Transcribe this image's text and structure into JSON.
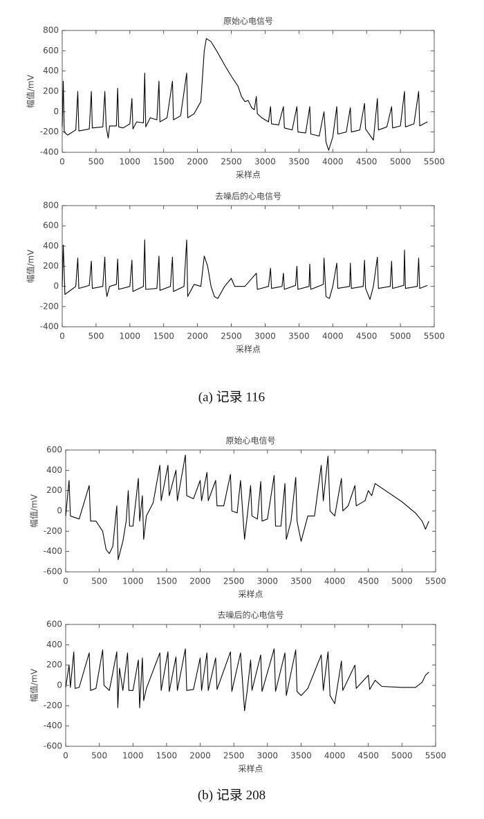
{
  "chart_data": [
    {
      "type": "line",
      "title": "原始心电信号",
      "xlabel": "采样点",
      "ylabel": "幅值/mV",
      "color": "#000000",
      "xlim": [
        0,
        5500
      ],
      "xticks": [
        0,
        500,
        1000,
        1500,
        2000,
        2500,
        3000,
        3500,
        4000,
        4500,
        5000,
        5500
      ],
      "ylim": [
        -400,
        800
      ],
      "yticks": [
        -400,
        -200,
        0,
        200,
        400,
        600,
        800
      ],
      "x": [
        0,
        15,
        30,
        80,
        200,
        230,
        245,
        400,
        430,
        445,
        600,
        630,
        650,
        680,
        700,
        800,
        820,
        835,
        900,
        1000,
        1030,
        1045,
        1100,
        1200,
        1220,
        1235,
        1300,
        1400,
        1430,
        1445,
        1550,
        1630,
        1645,
        1750,
        1840,
        1855,
        1950,
        2050,
        2100,
        2130,
        2200,
        2300,
        2400,
        2500,
        2600,
        2650,
        2700,
        2750,
        2800,
        2840,
        2870,
        2885,
        2950,
        3050,
        3080,
        3095,
        3200,
        3270,
        3285,
        3400,
        3470,
        3485,
        3600,
        3660,
        3675,
        3800,
        3870,
        3900,
        3940,
        4000,
        4060,
        4075,
        4200,
        4260,
        4275,
        4400,
        4470,
        4485,
        4600,
        4660,
        4675,
        4800,
        4870,
        4885,
        5000,
        5060,
        5075,
        5200,
        5270,
        5285,
        5400
      ],
      "values": [
        -150,
        300,
        -200,
        -230,
        -180,
        200,
        -190,
        -170,
        200,
        -160,
        -150,
        200,
        -150,
        -260,
        -140,
        -140,
        230,
        -150,
        -160,
        -120,
        130,
        -170,
        -100,
        -110,
        380,
        -150,
        -60,
        -80,
        300,
        -100,
        -60,
        300,
        -80,
        -40,
        380,
        -60,
        -20,
        100,
        600,
        720,
        690,
        580,
        460,
        350,
        250,
        150,
        100,
        110,
        40,
        20,
        150,
        -20,
        -60,
        -100,
        50,
        -120,
        -130,
        50,
        -160,
        -180,
        50,
        -200,
        -210,
        50,
        -220,
        -240,
        0,
        -300,
        -380,
        -250,
        50,
        -220,
        -200,
        40,
        -200,
        -180,
        80,
        -170,
        -280,
        130,
        -180,
        -150,
        50,
        -160,
        -140,
        200,
        -150,
        -120,
        200,
        -140,
        -100
      ]
    },
    {
      "type": "line",
      "title": "去噪后的心电信号",
      "xlabel": "采样点",
      "ylabel": "幅值/mV",
      "color": "#000000",
      "xlim": [
        0,
        5500
      ],
      "xticks": [
        0,
        500,
        1000,
        1500,
        2000,
        2500,
        3000,
        3500,
        4000,
        4500,
        5000,
        5500
      ],
      "ylim": [
        -400,
        800
      ],
      "yticks": [
        -400,
        -200,
        0,
        200,
        400,
        600,
        800
      ],
      "x": [
        0,
        15,
        40,
        100,
        200,
        230,
        245,
        400,
        430,
        445,
        600,
        630,
        645,
        660,
        700,
        800,
        820,
        835,
        1000,
        1030,
        1045,
        1200,
        1220,
        1235,
        1400,
        1430,
        1445,
        1600,
        1630,
        1645,
        1800,
        1840,
        1855,
        1950,
        2050,
        2100,
        2150,
        2200,
        2250,
        2300,
        2400,
        2500,
        2550,
        2700,
        2870,
        2885,
        3050,
        3080,
        3095,
        3250,
        3270,
        3285,
        3450,
        3470,
        3485,
        3650,
        3660,
        3675,
        3860,
        3870,
        3900,
        3950,
        4000,
        4060,
        4075,
        4250,
        4260,
        4275,
        4450,
        4470,
        4485,
        4550,
        4600,
        4660,
        4675,
        4850,
        4870,
        4885,
        5050,
        5060,
        5075,
        5250,
        5270,
        5285,
        5400
      ],
      "values": [
        0,
        410,
        -80,
        -50,
        0,
        280,
        -20,
        10,
        250,
        -20,
        0,
        290,
        -20,
        -100,
        0,
        20,
        270,
        -30,
        0,
        260,
        -50,
        0,
        460,
        -30,
        -20,
        300,
        -40,
        0,
        290,
        -50,
        0,
        460,
        -100,
        20,
        0,
        300,
        200,
        0,
        -100,
        -120,
        0,
        80,
        0,
        0,
        130,
        -30,
        0,
        180,
        -20,
        0,
        130,
        -30,
        10,
        200,
        -30,
        0,
        220,
        -30,
        20,
        280,
        -100,
        -120,
        0,
        230,
        -20,
        0,
        230,
        -20,
        0,
        260,
        -20,
        -130,
        0,
        290,
        -20,
        0,
        250,
        -20,
        10,
        360,
        -20,
        0,
        280,
        -20,
        10
      ]
    },
    {
      "type": "line",
      "title": "原始心电信号",
      "xlabel": "采样点",
      "ylabel": "幅值/mV",
      "color": "#000000",
      "xlim": [
        0,
        5500
      ],
      "xticks": [
        0,
        500,
        1000,
        1500,
        2000,
        2500,
        3000,
        3500,
        4000,
        4500,
        5000,
        5500
      ],
      "ylim": [
        -600,
        600
      ],
      "yticks": [
        -600,
        -400,
        -200,
        0,
        200,
        400,
        600
      ],
      "x": [
        0,
        50,
        70,
        200,
        350,
        370,
        450,
        550,
        600,
        650,
        700,
        760,
        780,
        850,
        900,
        930,
        950,
        1000,
        1080,
        1100,
        1140,
        1160,
        1200,
        1300,
        1400,
        1420,
        1520,
        1540,
        1640,
        1660,
        1780,
        1800,
        1900,
        2000,
        2020,
        2100,
        2120,
        2230,
        2250,
        2350,
        2450,
        2470,
        2550,
        2600,
        2660,
        2700,
        2750,
        2770,
        2850,
        2900,
        2920,
        3000,
        3100,
        3120,
        3200,
        3260,
        3280,
        3350,
        3420,
        3440,
        3500,
        3600,
        3700,
        3800,
        3830,
        3900,
        3930,
        4000,
        4100,
        4120,
        4200,
        4300,
        4320,
        4450,
        4500,
        4550,
        4600,
        4800,
        5000,
        5200,
        5300,
        5350,
        5400
      ],
      "values": [
        -50,
        300,
        -50,
        -80,
        250,
        -100,
        -100,
        -200,
        -380,
        -420,
        -350,
        50,
        -480,
        -300,
        -100,
        200,
        -150,
        -150,
        320,
        -100,
        150,
        -280,
        -50,
        80,
        450,
        100,
        450,
        150,
        400,
        100,
        550,
        150,
        120,
        300,
        100,
        380,
        100,
        300,
        50,
        50,
        360,
        0,
        -20,
        300,
        -280,
        -50,
        250,
        -50,
        -80,
        290,
        -100,
        -80,
        350,
        -150,
        -150,
        270,
        -280,
        -100,
        330,
        -100,
        -300,
        -50,
        -50,
        450,
        100,
        540,
        0,
        -50,
        320,
        0,
        50,
        250,
        50,
        100,
        200,
        150,
        270,
        180,
        90,
        -20,
        -100,
        -180,
        -100
      ]
    },
    {
      "type": "line",
      "title": "去噪后的心电信号",
      "xlabel": "采样点",
      "ylabel": "幅值/mV",
      "color": "#000000",
      "xlim": [
        0,
        5500
      ],
      "xticks": [
        0,
        500,
        1000,
        1500,
        2000,
        2500,
        3000,
        3500,
        4000,
        4500,
        5000,
        5500
      ],
      "ylim": [
        -600,
        600
      ],
      "yticks": [
        -600,
        -400,
        -200,
        0,
        200,
        400,
        600
      ],
      "x": [
        0,
        50,
        70,
        120,
        140,
        200,
        350,
        370,
        450,
        550,
        570,
        650,
        760,
        775,
        800,
        850,
        920,
        940,
        1000,
        1080,
        1100,
        1140,
        1160,
        1200,
        1400,
        1420,
        1520,
        1540,
        1640,
        1660,
        1780,
        1800,
        1900,
        2000,
        2020,
        2100,
        2120,
        2230,
        2250,
        2450,
        2470,
        2600,
        2660,
        2700,
        2750,
        2770,
        2900,
        2920,
        3100,
        3120,
        3260,
        3280,
        3420,
        3440,
        3500,
        3600,
        3800,
        3830,
        3900,
        3930,
        4000,
        4100,
        4120,
        4300,
        4320,
        4500,
        4520,
        4600,
        4700,
        5000,
        5200,
        5300,
        5350,
        5400
      ],
      "values": [
        -20,
        200,
        -20,
        330,
        -30,
        -20,
        320,
        -50,
        -30,
        350,
        0,
        -50,
        330,
        -220,
        170,
        -50,
        320,
        -50,
        -50,
        250,
        -220,
        270,
        -150,
        -30,
        320,
        -50,
        330,
        -60,
        280,
        -50,
        360,
        -50,
        -40,
        270,
        -50,
        320,
        -50,
        270,
        -40,
        330,
        -60,
        320,
        -250,
        -50,
        250,
        -50,
        300,
        -60,
        360,
        -60,
        320,
        -100,
        350,
        -60,
        -100,
        -30,
        300,
        -50,
        330,
        -100,
        -180,
        240,
        -50,
        200,
        -30,
        100,
        -40,
        50,
        -10,
        -20,
        -20,
        30,
        100,
        130
      ]
    }
  ],
  "captions": [
    "(a)  记录 116",
    "(b)  记录 208"
  ]
}
